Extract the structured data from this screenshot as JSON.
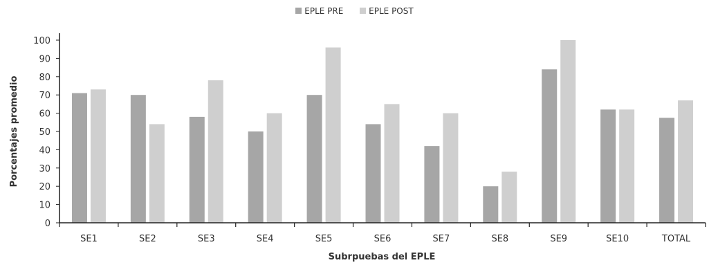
{
  "chart_data": {
    "type": "bar",
    "xlabel": "Subrpuebas del EPLE",
    "ylabel": "Porcentajes promedio",
    "ylim": [
      0,
      100
    ],
    "yticks": [
      0,
      10,
      20,
      30,
      40,
      50,
      60,
      70,
      80,
      90,
      100
    ],
    "legend_position": "top-center",
    "grid": false,
    "categories": [
      "SE1",
      "SE2",
      "SE3",
      "SE4",
      "SE5",
      "SE6",
      "SE7",
      "SE8",
      "SE9",
      "SE10",
      "TOTAL"
    ],
    "series": [
      {
        "name": "EPLE PRE",
        "color": "#a6a6a6",
        "values": [
          71,
          70,
          58,
          50,
          70,
          54,
          42,
          20,
          84,
          62,
          57.5
        ]
      },
      {
        "name": "EPLE POST",
        "color": "#cfcfcf",
        "values": [
          73,
          54,
          78,
          60,
          96,
          65,
          60,
          28,
          100,
          62,
          67
        ]
      }
    ]
  }
}
